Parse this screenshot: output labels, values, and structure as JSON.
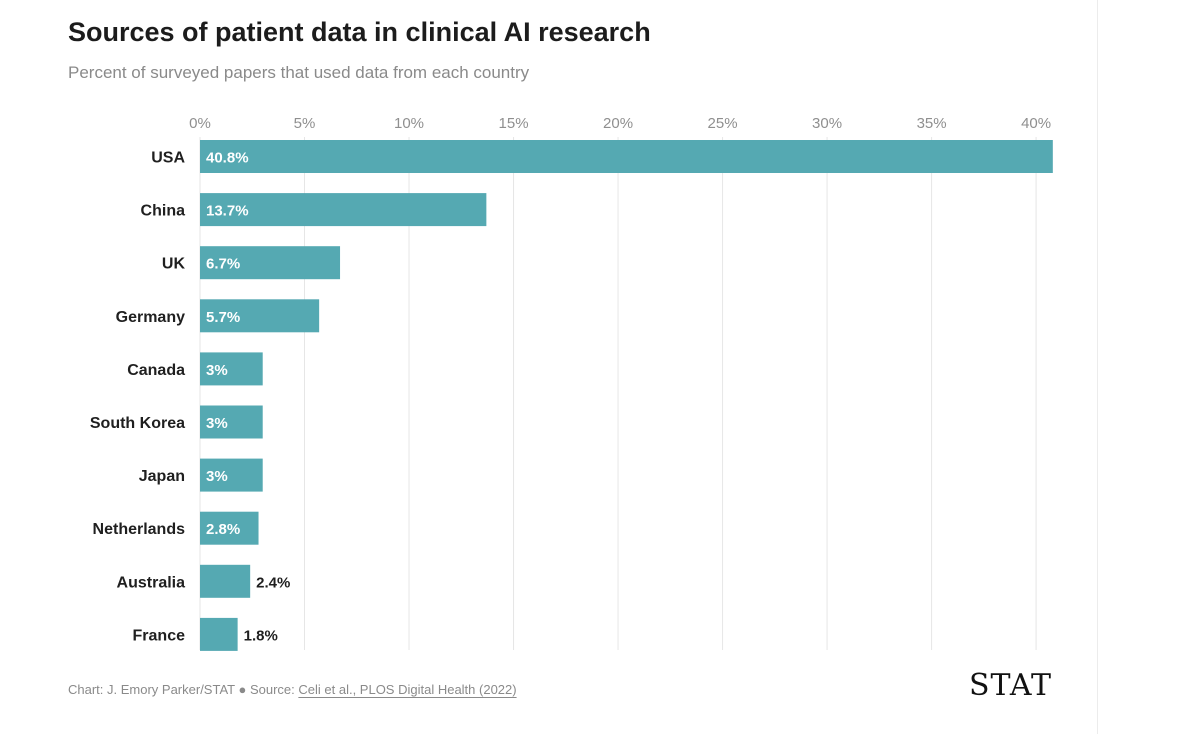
{
  "header": {
    "title": "Sources of patient data in clinical AI research",
    "subtitle": "Percent of surveyed papers that used data from each country"
  },
  "footer": {
    "credit": "Chart: J. Emory Parker/STAT",
    "separator": " ● Source: ",
    "source_link": "Celi et al., PLOS Digital Health (2022)"
  },
  "logo": "STAT",
  "colors": {
    "bar": "#55a9b2",
    "inside_label": "#ffffff",
    "outside_label": "#1f1f1f",
    "grid": "#e6e6e6"
  },
  "chart_data": {
    "type": "bar",
    "orientation": "horizontal",
    "title": "Sources of patient data in clinical AI research",
    "subtitle": "Percent of surveyed papers that used data from each country",
    "xlabel": "",
    "ylabel": "",
    "xlim": [
      0,
      41
    ],
    "ticks": [
      0,
      5,
      10,
      15,
      20,
      25,
      30,
      35,
      40
    ],
    "tick_labels": [
      "0%",
      "5%",
      "10%",
      "15%",
      "20%",
      "25%",
      "30%",
      "35%",
      "40%"
    ],
    "categories": [
      "USA",
      "China",
      "UK",
      "Germany",
      "Canada",
      "South Korea",
      "Japan",
      "Netherlands",
      "Australia",
      "France"
    ],
    "values": [
      40.8,
      13.7,
      6.7,
      5.7,
      3,
      3,
      3,
      2.8,
      2.4,
      1.8
    ],
    "value_labels": [
      "40.8%",
      "13.7%",
      "6.7%",
      "5.7%",
      "3%",
      "3%",
      "3%",
      "2.8%",
      "2.4%",
      "1.8%"
    ],
    "grid": true,
    "legend": "none"
  }
}
